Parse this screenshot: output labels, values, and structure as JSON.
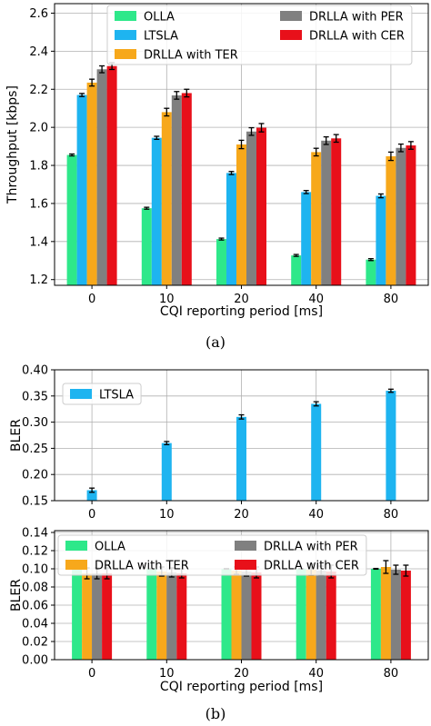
{
  "colors": {
    "OLLA": "#2ee88a",
    "LTSLA": "#1eb4f0",
    "DRLLA with TER": "#f7a81b",
    "DRLLA with PER": "#808080",
    "DRLLA with CER": "#e8101a"
  },
  "captions": {
    "a": "(a)",
    "b": "(b)"
  },
  "chart_data": [
    {
      "id": "a",
      "type": "bar",
      "xlabel": "CQI reporting period [ms]",
      "ylabel": "Throughput [kbps]",
      "ylim": [
        1.17,
        2.65
      ],
      "yticks": [
        1.2,
        1.4,
        1.6,
        1.8,
        2.0,
        2.2,
        2.4,
        2.6
      ],
      "ytick_labels": [
        "1.2",
        "1.4",
        "1.6",
        "1.8",
        "2.0",
        "2.2",
        "2.4",
        "2.6"
      ],
      "categories": [
        "0",
        "10",
        "20",
        "40",
        "80"
      ],
      "grid": true,
      "legend": "top-right",
      "series": [
        {
          "name": "OLLA",
          "values": [
            1.855,
            1.575,
            1.413,
            1.327,
            1.305
          ],
          "errors": [
            0.005,
            0.005,
            0.005,
            0.005,
            0.005
          ]
        },
        {
          "name": "LTSLA",
          "values": [
            2.17,
            1.945,
            1.76,
            1.66,
            1.64
          ],
          "errors": [
            0.008,
            0.008,
            0.008,
            0.008,
            0.01
          ]
        },
        {
          "name": "DRLLA with TER",
          "values": [
            2.235,
            2.08,
            1.91,
            1.87,
            1.848
          ],
          "errors": [
            0.018,
            0.02,
            0.022,
            0.02,
            0.022
          ]
        },
        {
          "name": "DRLLA with PER",
          "values": [
            2.305,
            2.168,
            1.978,
            1.93,
            1.892
          ],
          "errors": [
            0.018,
            0.02,
            0.02,
            0.02,
            0.02
          ]
        },
        {
          "name": "DRLLA with CER",
          "values": [
            2.322,
            2.18,
            1.998,
            1.942,
            1.905
          ],
          "errors": [
            0.018,
            0.02,
            0.022,
            0.02,
            0.02
          ]
        }
      ]
    },
    {
      "id": "b-top",
      "type": "bar",
      "xlabel": "",
      "ylabel": "BLER",
      "ylim": [
        0.15,
        0.4
      ],
      "yticks": [
        0.15,
        0.2,
        0.25,
        0.3,
        0.35,
        0.4
      ],
      "ytick_labels": [
        "0.15",
        "0.20",
        "0.25",
        "0.30",
        "0.35",
        "0.40"
      ],
      "categories": [
        "0",
        "10",
        "20",
        "40",
        "80"
      ],
      "grid": true,
      "legend": "top-left",
      "series": [
        {
          "name": "LTSLA",
          "values": [
            0.17,
            0.26,
            0.31,
            0.335,
            0.36
          ],
          "errors": [
            0.004,
            0.003,
            0.004,
            0.004,
            0.003
          ]
        }
      ]
    },
    {
      "id": "b-bottom",
      "type": "bar",
      "xlabel": "CQI reporting period [ms]",
      "ylabel": "BLER",
      "ylim": [
        0.0,
        0.142
      ],
      "yticks": [
        0.0,
        0.02,
        0.04,
        0.06,
        0.08,
        0.1,
        0.12,
        0.14
      ],
      "ytick_labels": [
        "0.00",
        "0.02",
        "0.04",
        "0.06",
        "0.08",
        "0.10",
        "0.12",
        "0.14"
      ],
      "categories": [
        "0",
        "10",
        "20",
        "40",
        "80"
      ],
      "grid": true,
      "legend": "top",
      "series": [
        {
          "name": "OLLA",
          "values": [
            0.1,
            0.1,
            0.1,
            0.1,
            0.1
          ],
          "errors": [
            0.0004,
            0.0004,
            0.0004,
            0.0004,
            0.0004
          ]
        },
        {
          "name": "DRLLA with TER",
          "values": [
            0.095,
            0.097,
            0.098,
            0.099,
            0.102
          ],
          "errors": [
            0.006,
            0.005,
            0.004,
            0.006,
            0.007
          ]
        },
        {
          "name": "DRLLA with PER",
          "values": [
            0.095,
            0.096,
            0.097,
            0.098,
            0.099
          ],
          "errors": [
            0.006,
            0.005,
            0.005,
            0.005,
            0.005
          ]
        },
        {
          "name": "DRLLA with CER",
          "values": [
            0.095,
            0.095,
            0.096,
            0.097,
            0.098
          ],
          "errors": [
            0.006,
            0.005,
            0.006,
            0.007,
            0.006
          ]
        }
      ]
    }
  ]
}
